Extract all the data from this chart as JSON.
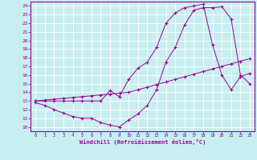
{
  "background_color": "#c8eef0",
  "grid_color": "#b0d8dc",
  "line_color": "#990099",
  "xlabel": "Windchill (Refroidissement éolien,°C)",
  "xlabel_color": "#990099",
  "tick_color": "#990099",
  "xlim": [
    -0.5,
    23.5
  ],
  "ylim": [
    9.5,
    24.5
  ],
  "yticks": [
    10,
    11,
    12,
    13,
    14,
    15,
    16,
    17,
    18,
    19,
    20,
    21,
    22,
    23,
    24
  ],
  "xticks": [
    0,
    1,
    2,
    3,
    4,
    5,
    6,
    7,
    8,
    9,
    10,
    11,
    12,
    13,
    14,
    15,
    16,
    17,
    18,
    19,
    20,
    21,
    22,
    23
  ],
  "line1_x": [
    0,
    1,
    2,
    3,
    4,
    5,
    6,
    7,
    8,
    9,
    10,
    11,
    12,
    13,
    14,
    15,
    16,
    17,
    18,
    19,
    20,
    21,
    22,
    23
  ],
  "line1_y": [
    13.0,
    13.1,
    13.2,
    13.3,
    13.4,
    13.5,
    13.6,
    13.7,
    13.8,
    13.9,
    14.0,
    14.3,
    14.6,
    14.9,
    15.2,
    15.5,
    15.8,
    16.1,
    16.4,
    16.7,
    17.0,
    17.3,
    17.6,
    17.9
  ],
  "line2_x": [
    0,
    1,
    2,
    3,
    4,
    5,
    6,
    7,
    8,
    9,
    10,
    11,
    12,
    13,
    14,
    15,
    16,
    17,
    18,
    19,
    20,
    21,
    22,
    23
  ],
  "line2_y": [
    12.8,
    12.5,
    12.0,
    11.6,
    11.2,
    11.0,
    11.0,
    10.5,
    10.2,
    10.0,
    10.8,
    11.5,
    12.5,
    14.3,
    17.5,
    19.2,
    21.8,
    23.5,
    23.8,
    23.8,
    23.9,
    22.5,
    16.0,
    15.0
  ],
  "line3_x": [
    0,
    1,
    2,
    3,
    4,
    5,
    6,
    7,
    8,
    9,
    10,
    11,
    12,
    13,
    14,
    15,
    16,
    17,
    18,
    19,
    20,
    21,
    22,
    23
  ],
  "line3_y": [
    13.0,
    13.0,
    13.0,
    13.0,
    13.0,
    13.0,
    13.0,
    13.0,
    14.2,
    13.5,
    15.5,
    16.8,
    17.5,
    19.2,
    22.0,
    23.2,
    23.8,
    24.0,
    24.2,
    19.5,
    16.0,
    14.3,
    15.8,
    16.2
  ]
}
